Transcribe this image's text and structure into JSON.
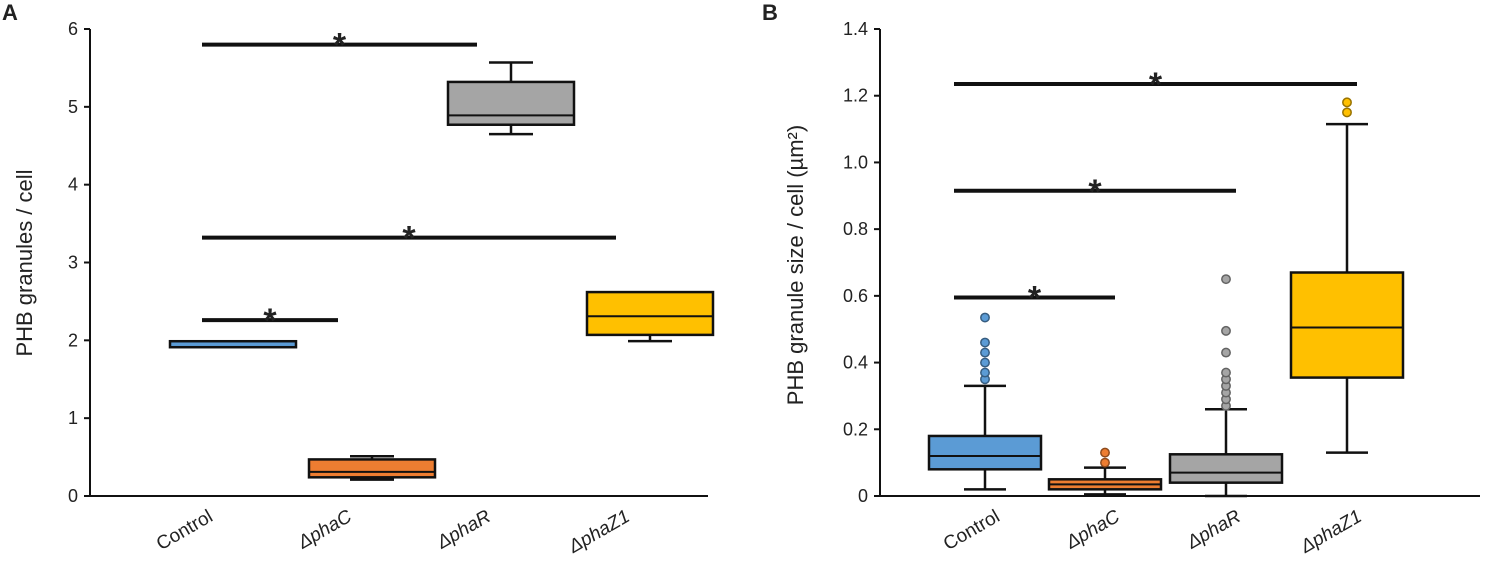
{
  "chart_data": [
    {
      "type": "box",
      "panel_label": "A",
      "ylabel": "PHB granules / cell",
      "ylim": [
        0,
        6
      ],
      "yticks": [
        "0",
        "1",
        "2",
        "3",
        "4",
        "5",
        "6"
      ],
      "categories": [
        "Control",
        "ΔphaC",
        "ΔphaR",
        "ΔphaZ1"
      ],
      "boxes": [
        {
          "name": "Control",
          "color": "#5b9bd5",
          "whisker_low": 1.92,
          "q1": 1.92,
          "median": 1.95,
          "q3": 1.98,
          "whisker_high": 1.98,
          "outliers": []
        },
        {
          "name": "ΔphaC",
          "color": "#ed7d31",
          "whisker_low": 0.21,
          "q1": 0.24,
          "median": 0.31,
          "q3": 0.47,
          "whisker_high": 0.51,
          "outliers": []
        },
        {
          "name": "ΔphaR",
          "color": "#a5a5a5",
          "whisker_low": 4.65,
          "q1": 4.77,
          "median": 4.89,
          "q3": 5.32,
          "whisker_high": 5.57,
          "outliers": []
        },
        {
          "name": "ΔphaZ1",
          "color": "#ffc000",
          "whisker_low": 1.99,
          "q1": 2.07,
          "median": 2.31,
          "q3": 2.62,
          "whisker_high": 2.62,
          "outliers": []
        }
      ],
      "significance": [
        {
          "from": "Control",
          "to": "ΔphaR",
          "y": 5.8,
          "label": "*"
        },
        {
          "from": "Control",
          "to": "ΔphaZ1",
          "y": 3.32,
          "label": "*"
        },
        {
          "from": "Control",
          "to": "ΔphaC",
          "y": 2.26,
          "label": "*"
        }
      ]
    },
    {
      "type": "box",
      "panel_label": "B",
      "ylabel": "PHB granule size / cell (µm²)",
      "ylim": [
        0,
        1.4
      ],
      "yticks": [
        "0",
        "0.2",
        "0.4",
        "0.6",
        "0.8",
        "1.0",
        "1.2",
        "1.4"
      ],
      "categories": [
        "Control",
        "ΔphaC",
        "ΔphaR",
        "ΔphaZ1"
      ],
      "boxes": [
        {
          "name": "Control",
          "color": "#5b9bd5",
          "whisker_low": 0.02,
          "q1": 0.08,
          "median": 0.12,
          "q3": 0.18,
          "whisker_high": 0.33,
          "outliers": [
            0.35,
            0.37,
            0.4,
            0.43,
            0.46,
            0.535
          ]
        },
        {
          "name": "ΔphaC",
          "color": "#ed7d31",
          "whisker_low": 0.005,
          "q1": 0.02,
          "median": 0.035,
          "q3": 0.05,
          "whisker_high": 0.085,
          "outliers": [
            0.1,
            0.13
          ]
        },
        {
          "name": "ΔphaR",
          "color": "#a5a5a5",
          "whisker_low": 0.0,
          "q1": 0.04,
          "median": 0.07,
          "q3": 0.125,
          "whisker_high": 0.26,
          "outliers": [
            0.27,
            0.29,
            0.31,
            0.33,
            0.35,
            0.37,
            0.43,
            0.495,
            0.65
          ]
        },
        {
          "name": "ΔphaZ1",
          "color": "#ffc000",
          "whisker_low": 0.13,
          "q1": 0.355,
          "median": 0.505,
          "q3": 0.67,
          "whisker_high": 1.115,
          "outliers": [
            1.15,
            1.18
          ]
        }
      ],
      "significance": [
        {
          "from": "Control",
          "to": "ΔphaZ1",
          "y": 1.235,
          "label": "*"
        },
        {
          "from": "Control",
          "to": "ΔphaR",
          "y": 0.915,
          "label": "*"
        },
        {
          "from": "Control",
          "to": "ΔphaC",
          "y": 0.595,
          "label": "*"
        }
      ]
    }
  ]
}
